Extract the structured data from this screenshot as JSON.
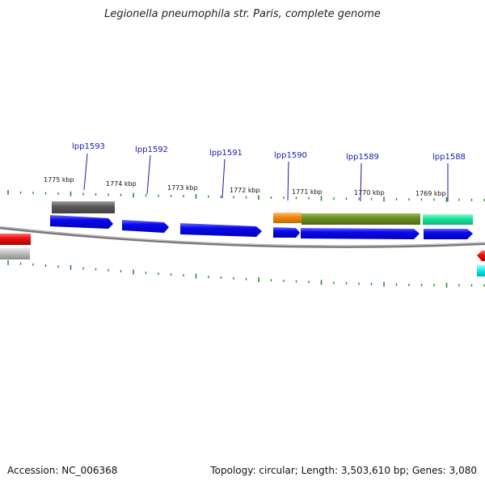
{
  "title": "Legionella pneumophila str. Paris, complete genome",
  "accession": "Accession: NC_006368",
  "summary": "Topology: circular; Length: 3,503,610 bp; Genes: 3,080",
  "colors": {
    "backbone": "#888888",
    "tick": "#2e8b2e",
    "label_line": "#1a1aa8",
    "cds": "#0a0aee",
    "gene_grey": "#5a5a5a",
    "orange": "#f08a10",
    "olive": "#6b8e23",
    "teal": "#1ee29a",
    "red": "#ee1111",
    "cyan": "#10e6e6",
    "silver": "#b9b9b9"
  },
  "kbp_labels": [
    "1775 kbp",
    "1774 kbp",
    "1773 kbp",
    "1772 kbp",
    "1771 kbp",
    "1770 kbp",
    "1769 kbp"
  ],
  "gene_labels": [
    "lpp1593",
    "lpp1592",
    "lpp1591",
    "lpp1590",
    "lpp1589",
    "lpp1588"
  ]
}
